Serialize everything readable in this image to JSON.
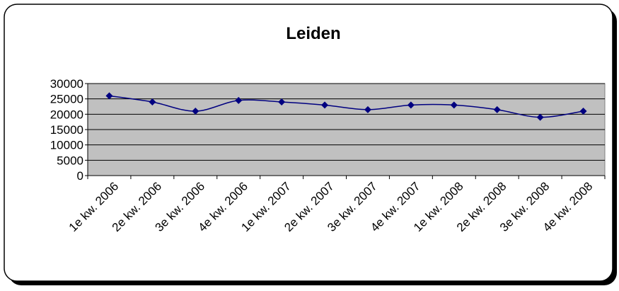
{
  "chart_data": {
    "type": "line",
    "title": "Leiden",
    "categories": [
      "1e kw. 2006",
      "2e kw. 2006",
      "3e kw. 2006",
      "4e kw. 2006",
      "1e kw. 2007",
      "2e kw. 2007",
      "3e kw. 2007",
      "4e kw. 2007",
      "1e kw. 2008",
      "2e kw. 2008",
      "3e kw. 2008",
      "4e kw. 2008"
    ],
    "series": [
      {
        "name": "Leiden",
        "color": "#000080",
        "values": [
          26000,
          24000,
          21000,
          24500,
          24000,
          23000,
          21500,
          23000,
          23000,
          21500,
          19000,
          21000
        ]
      }
    ],
    "ylim": [
      0,
      30000
    ],
    "yticks": [
      0,
      5000,
      10000,
      15000,
      20000,
      25000,
      30000
    ],
    "grid": true,
    "plot_background": "#c0c0c0",
    "smooth": true
  }
}
